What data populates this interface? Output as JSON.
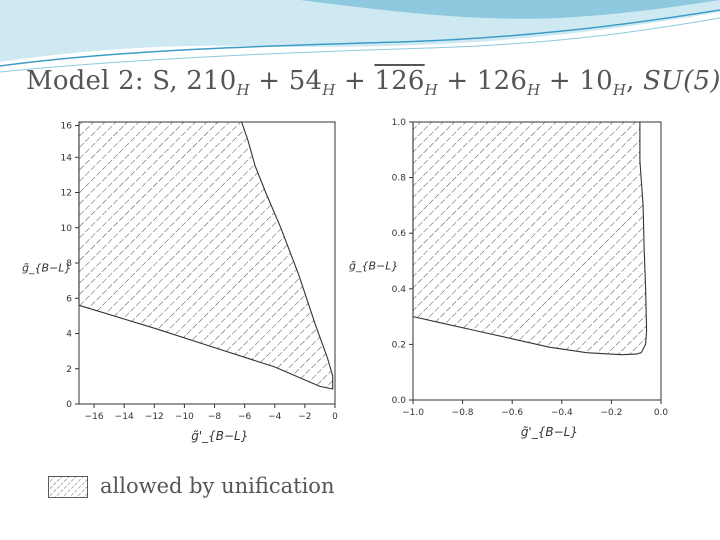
{
  "slide": {
    "title": {
      "model": "Model 2: S,",
      "t1": "210",
      "t2": "54",
      "t3": "126",
      "t4": "126",
      "t5": "10",
      "sub": "H",
      "plus": "+",
      "comma": ",",
      "group": "SU(5)"
    },
    "legend_label": "allowed by unification"
  },
  "colors": {
    "wave_light": "#cfe9f3",
    "wave_mid": "#8ec9e0",
    "wave_dark": "#3c9dc6",
    "title_text": "#555555",
    "axis": "#333333",
    "hatch": "#222222"
  },
  "chart_data": [
    {
      "type": "area",
      "fill_style": "diagonal hatch",
      "region_name": "allowed by unification",
      "xlabel": "g̃'_{B−L}",
      "ylabel": "g̃_{B−L}",
      "xlim": [
        -17,
        0
      ],
      "ylim": [
        0,
        16
      ],
      "xticks": [
        -16,
        -14,
        -12,
        -10,
        -8,
        -6,
        -4,
        -2,
        0
      ],
      "xtick_labels": [
        "−16",
        "−14",
        "−12",
        "−10",
        "−8",
        "−6",
        "−4",
        "−2",
        "0"
      ],
      "yticks": [
        0,
        2,
        4,
        6,
        8,
        10,
        12,
        14,
        15.8
      ],
      "ytick_labels": [
        "0",
        "2",
        "4",
        "6",
        "8",
        "10",
        "12",
        "14",
        "16"
      ],
      "region": {
        "x": [
          -17,
          -6.2,
          -5.8,
          -5.3,
          -4.6,
          -3.6,
          -2.4,
          -1.3,
          -0.5,
          -0.15,
          -0.15,
          -1.0,
          -4.0,
          -8.0,
          -12.0,
          -17.0
        ],
        "y": [
          16,
          16,
          15.0,
          13.5,
          12.0,
          10.0,
          7.3,
          4.5,
          2.6,
          1.6,
          0.85,
          1.0,
          2.1,
          3.2,
          4.3,
          5.6
        ]
      }
    },
    {
      "type": "area",
      "fill_style": "diagonal hatch",
      "region_name": "allowed by unification",
      "xlabel": "g̃'_{B−L}",
      "ylabel": "g̃_{B−L}",
      "xlim": [
        -1.0,
        0.0
      ],
      "ylim": [
        0.0,
        1.0
      ],
      "xticks": [
        -1.0,
        -0.8,
        -0.6,
        -0.4,
        -0.2,
        0.0
      ],
      "xtick_labels": [
        "−1.0",
        "−0.8",
        "−0.6",
        "−0.4",
        "−0.2",
        "0.0"
      ],
      "yticks": [
        0.0,
        0.2,
        0.4,
        0.6,
        0.8,
        1.0
      ],
      "ytick_labels": [
        "0.0",
        "0.2",
        "0.4",
        "0.6",
        "0.8",
        "1.0"
      ],
      "region": {
        "x": [
          -1.0,
          -0.085,
          -0.085,
          -0.072,
          -0.068,
          -0.062,
          -0.058,
          -0.062,
          -0.08,
          -0.1,
          -0.16,
          -0.3,
          -0.45,
          -0.6,
          -0.75,
          -0.9,
          -1.0
        ],
        "y": [
          1.0,
          1.0,
          0.86,
          0.7,
          0.55,
          0.4,
          0.25,
          0.2,
          0.17,
          0.165,
          0.163,
          0.17,
          0.19,
          0.22,
          0.25,
          0.28,
          0.3
        ]
      }
    }
  ]
}
